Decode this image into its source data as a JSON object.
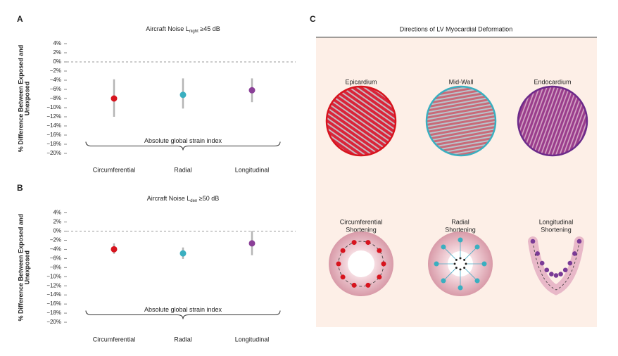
{
  "chart_data": [
    {
      "type": "pointrange",
      "panel": "A",
      "title_parts": [
        "Aircraft Noise L",
        "night",
        " ≥45 dB"
      ],
      "ylabel_lines": [
        "% Difference Between Exposed and",
        "Unexposed"
      ],
      "categories": [
        "Circumferential",
        "Radial",
        "Longitudinal"
      ],
      "values": [
        -8,
        -7.2,
        -6.2
      ],
      "ci_low": [
        -12,
        -10.2,
        -8.8
      ],
      "ci_high": [
        -3.8,
        -3.6,
        -3.6
      ],
      "colors": [
        "#d7141e",
        "#3aafc0",
        "#8a3f97"
      ],
      "annotation": "Absolute global strain index",
      "refline": 0,
      "ylim": [
        -21,
        5
      ],
      "yticks": [
        {
          "value": 4,
          "label": "4%"
        },
        {
          "value": 2,
          "label": "2%"
        },
        {
          "value": 0,
          "label": "0%"
        },
        {
          "value": -2,
          "label": "−2%"
        },
        {
          "value": -4,
          "label": "−4%"
        },
        {
          "value": -6,
          "label": "−6%"
        },
        {
          "value": -8,
          "label": "−8%"
        },
        {
          "value": -10,
          "label": "−10%"
        },
        {
          "value": -12,
          "label": "−12%"
        },
        {
          "value": -14,
          "label": "−14%"
        },
        {
          "value": -16,
          "label": "−16%"
        },
        {
          "value": -18,
          "label": "−18%"
        },
        {
          "value": -20,
          "label": "−20%"
        }
      ]
    },
    {
      "type": "pointrange",
      "panel": "B",
      "title_parts": [
        "Aircraft Noise L",
        "den",
        " ≥50 dB"
      ],
      "ylabel_lines": [
        "% Difference Between Exposed and",
        "Unexposed"
      ],
      "categories": [
        "Circumferential",
        "Radial",
        "Longitudinal"
      ],
      "values": [
        -4,
        -4.9,
        -2.7
      ],
      "ci_low": [
        -5,
        -6.1,
        -5.3
      ],
      "ci_high": [
        -2.7,
        -3.6,
        0
      ],
      "colors": [
        "#d7141e",
        "#3aafc0",
        "#8a3f97"
      ],
      "annotation": "Absolute global strain index",
      "refline": 0,
      "ylim": [
        -21,
        5
      ],
      "yticks": [
        {
          "value": 4,
          "label": "4%"
        },
        {
          "value": 2,
          "label": "2%"
        },
        {
          "value": 0,
          "label": "0%"
        },
        {
          "value": -2,
          "label": "−2%"
        },
        {
          "value": -4,
          "label": "−4%"
        },
        {
          "value": -6,
          "label": "−6%"
        },
        {
          "value": -8,
          "label": "−8%"
        },
        {
          "value": -10,
          "label": "−10%"
        },
        {
          "value": -12,
          "label": "−12%"
        },
        {
          "value": -14,
          "label": "−14%"
        },
        {
          "value": -16,
          "label": "−16%"
        },
        {
          "value": -18,
          "label": "−18%"
        },
        {
          "value": -20,
          "label": "−20%"
        }
      ]
    }
  ],
  "diagram": {
    "panel": "C",
    "title": "Directions of LV Myocardial Deformation",
    "layers": [
      "Epicardium",
      "Mid-Wall",
      "Endocardium"
    ],
    "shortening": [
      [
        "Circumferential",
        "Shortening"
      ],
      [
        "Radial",
        "Shortening"
      ],
      [
        "Longitudinal",
        "Shortening"
      ]
    ]
  }
}
